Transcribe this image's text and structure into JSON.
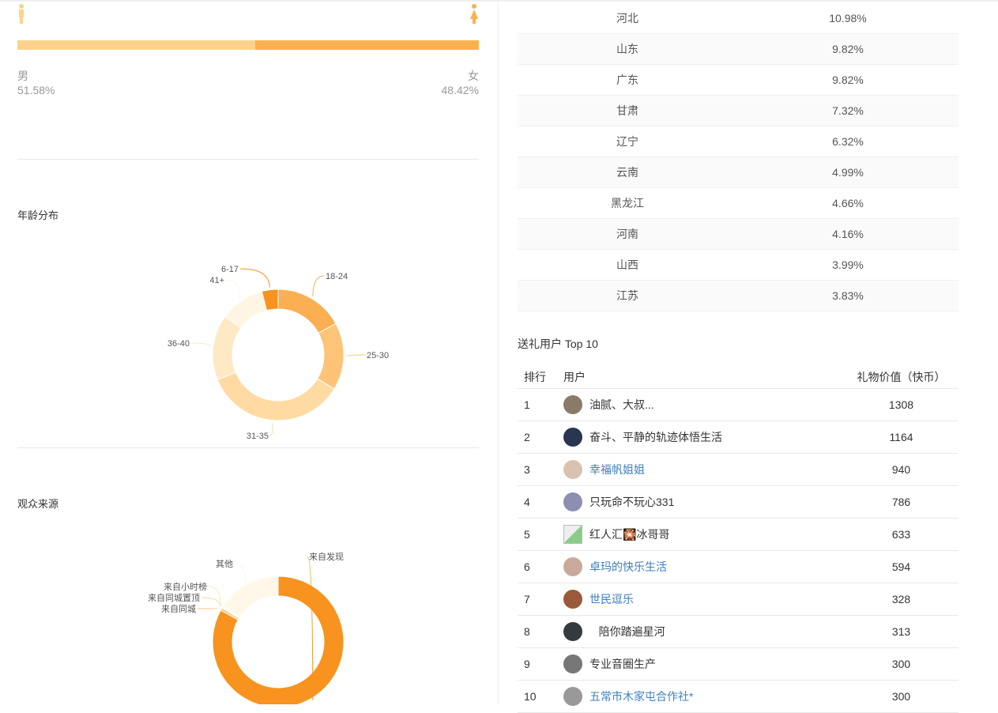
{
  "gender": {
    "male_label": "男",
    "male_pct": "51.58%",
    "male_value": 51.58,
    "female_label": "女",
    "female_pct": "48.42%",
    "female_value": 48.42,
    "colors": {
      "male": "#fdd28b",
      "female": "#fbb04e"
    }
  },
  "age": {
    "title": "年龄分布"
  },
  "source": {
    "title": "观众来源"
  },
  "chart_data": [
    {
      "type": "pie",
      "title": "年龄分布",
      "categories": [
        "6-17",
        "18-24",
        "25-30",
        "31-35",
        "36-40",
        "41+"
      ],
      "values": [
        4,
        17,
        16.5,
        35,
        16,
        11
      ],
      "colors": [
        "#f7931e",
        "#fbae52",
        "#fdc477",
        "#ffdba3",
        "#ffe8c4",
        "#fff5e3"
      ]
    },
    {
      "type": "pie",
      "title": "观众来源",
      "categories": [
        "来自发现",
        "来自同城",
        "来自同城置顶",
        "来自小时榜",
        "其他"
      ],
      "values": [
        83,
        0.6,
        0.3,
        0.2,
        15.9
      ],
      "colors": [
        "#f7931e",
        "#fcc276",
        "#fdd9a4",
        "#fee9c8",
        "#fff7e8"
      ]
    }
  ],
  "provinces": [
    {
      "name": "河北",
      "pct": "10.98%"
    },
    {
      "name": "山东",
      "pct": "9.82%"
    },
    {
      "name": "广东",
      "pct": "9.82%"
    },
    {
      "name": "甘肃",
      "pct": "7.32%"
    },
    {
      "name": "辽宁",
      "pct": "6.32%"
    },
    {
      "name": "云南",
      "pct": "4.99%"
    },
    {
      "name": "黑龙江",
      "pct": "4.66%"
    },
    {
      "name": "河南",
      "pct": "4.16%"
    },
    {
      "name": "山西",
      "pct": "3.99%"
    },
    {
      "name": "江苏",
      "pct": "3.83%"
    }
  ],
  "gifts": {
    "title": "送礼用户 Top 10",
    "headers": [
      "排行",
      "用户",
      "礼物价值（快币）"
    ],
    "rows": [
      {
        "rank": "1",
        "name": "油腻、大叔...",
        "value": "1308",
        "link": false,
        "avatar": "#8a7a6a"
      },
      {
        "rank": "2",
        "name": "奋斗、平静的轨迹体悟生活",
        "value": "1164",
        "link": false,
        "avatar": "#2a3550"
      },
      {
        "rank": "3",
        "name": "幸福帆姐姐",
        "value": "940",
        "link": true,
        "avatar": "#d9c3b0"
      },
      {
        "rank": "4",
        "name": "只玩命不玩心331",
        "value": "786",
        "link": false,
        "avatar": "#8c8fb0"
      },
      {
        "rank": "5",
        "name": "红人汇🎇冰哥哥",
        "value": "633",
        "link": false,
        "avatar": "broken"
      },
      {
        "rank": "6",
        "name": "卓玛的快乐生活",
        "value": "594",
        "link": true,
        "avatar": "#c9a99a"
      },
      {
        "rank": "7",
        "name": "世民逗乐",
        "value": "328",
        "link": true,
        "avatar": "#9a5a3a"
      },
      {
        "rank": "8",
        "name": "   陪你踏遍星河",
        "value": "313",
        "link": false,
        "avatar": "#333a40"
      },
      {
        "rank": "9",
        "name": "专业音圈生产",
        "value": "300",
        "link": false,
        "avatar": "#777"
      },
      {
        "rank": "10",
        "name": "五常市木家屯合作社*",
        "value": "300",
        "link": true,
        "avatar": "#999"
      }
    ]
  }
}
